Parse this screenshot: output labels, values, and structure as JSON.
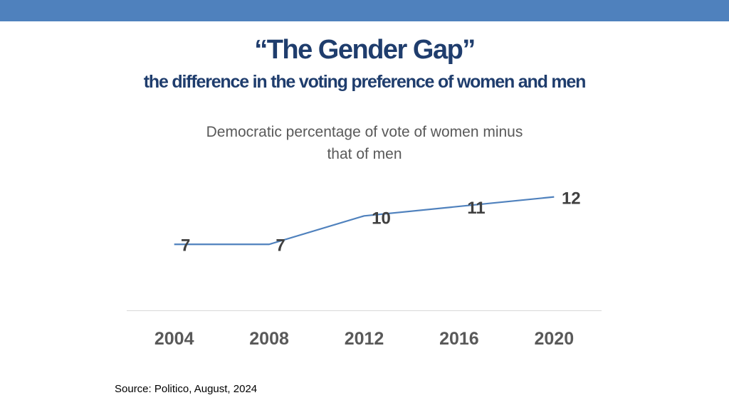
{
  "colors": {
    "top_bar": "#4f81bd",
    "title": "#1f3d6d",
    "line": "#4f81bd",
    "axis": "#d9d9d9"
  },
  "slide": {
    "title": "“The Gender Gap”",
    "subtitle": "the difference in the voting preference of women and men",
    "source": "Source: Politico, August, 2024"
  },
  "chart_data": {
    "type": "line",
    "title_lines": [
      "Democratic percentage of vote of women minus",
      "that of men"
    ],
    "categories": [
      "2004",
      "2008",
      "2012",
      "2016",
      "2020"
    ],
    "series": [
      {
        "name": "Gender gap",
        "values": [
          7,
          7,
          10,
          11,
          12
        ],
        "labels": [
          "7",
          "7",
          "10",
          "11",
          "12"
        ]
      }
    ],
    "xlabel": "",
    "ylabel": "",
    "ylim": [
      0,
      14
    ],
    "grid": false,
    "legend": "none"
  }
}
